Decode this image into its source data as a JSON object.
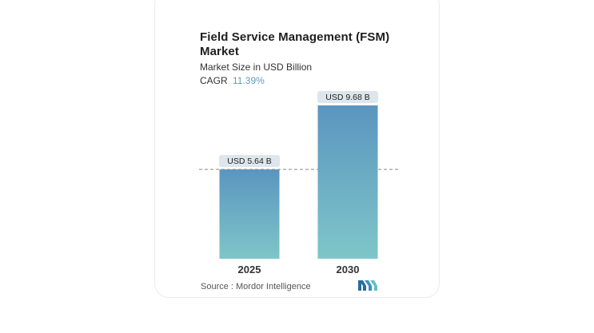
{
  "header": {
    "title": "Field Service Management (FSM) Market",
    "subtitle": "Market Size in USD Billion",
    "cagr_label": "CAGR",
    "cagr_value": "11.39%"
  },
  "footer": {
    "source": "Source :  Mordor Intelligence"
  },
  "colors": {
    "bar_top": "#5b95bf",
    "bar_bottom": "#7ec6c9",
    "label_bg": "#dde6ec",
    "cagr_accent": "#5f9cc0"
  },
  "logo": {
    "icon": "mordor-intelligence-logo-icon"
  },
  "chart_data": {
    "type": "bar",
    "categories": [
      "2025",
      "2030"
    ],
    "values": [
      5.64,
      9.68
    ],
    "data_labels": [
      "USD 5.64 B",
      "USD 9.68 B"
    ],
    "reference_line": 5.64,
    "ylabel": "",
    "xlabel": "",
    "grid": false
  }
}
